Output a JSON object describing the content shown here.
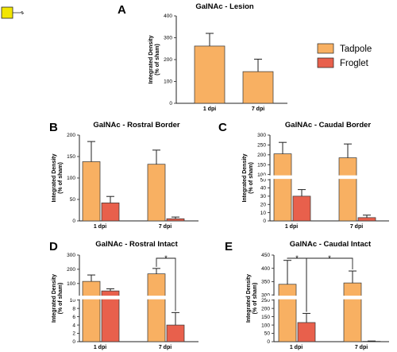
{
  "colors": {
    "tadpole": "#f8b062",
    "froglet": "#e8604c",
    "glyph": "#f2e600",
    "axis": "#222222"
  },
  "symbol": {
    "name": "galnac-square-glyph"
  },
  "legend": {
    "items": [
      {
        "label": "Tadpole",
        "color": "#f8b062"
      },
      {
        "label": "Froglet",
        "color": "#e8604c"
      }
    ]
  },
  "chart_data": [
    {
      "id": "A",
      "panel_label": "A",
      "type": "bar",
      "title": "GalNAc - Lesion",
      "ylabel": "Integrated Density\n(% of sham)",
      "categories": [
        "1 dpi",
        "7 dpi"
      ],
      "series": [
        {
          "name": "Tadpole",
          "values": [
            262,
            145
          ],
          "errors": [
            58,
            57
          ]
        }
      ],
      "yticks": [
        0,
        100,
        200,
        300,
        400
      ],
      "ylim": [
        0,
        400
      ],
      "significance": []
    },
    {
      "id": "B",
      "panel_label": "B",
      "type": "bar",
      "title": "GalNAc - Rostral Border",
      "ylabel": "Integrated Density\n(% of sham)",
      "categories": [
        "1 dpi",
        "7 dpi"
      ],
      "series": [
        {
          "name": "Tadpole",
          "values": [
            138,
            132
          ],
          "errors": [
            47,
            33
          ]
        },
        {
          "name": "Froglet",
          "values": [
            42,
            5
          ],
          "errors": [
            15,
            4
          ]
        }
      ],
      "yticks": [
        0,
        50,
        100,
        150,
        200
      ],
      "ylim": [
        0,
        200
      ],
      "significance": []
    },
    {
      "id": "C",
      "panel_label": "C",
      "type": "bar",
      "title": "GalNAc - Caudal Border",
      "ylabel": "Integrated Density\n(% of sham)",
      "categories": [
        "1 dpi",
        "7 dpi"
      ],
      "series": [
        {
          "name": "Tadpole",
          "values": [
            205,
            185
          ],
          "errors": [
            58,
            70
          ]
        },
        {
          "name": "Froglet",
          "values": [
            30,
            4
          ],
          "errors": [
            8,
            3
          ]
        }
      ],
      "yticks_low": [
        0,
        10,
        20,
        30,
        40,
        50
      ],
      "yticks_high": [
        100,
        150,
        200,
        250,
        300
      ],
      "ylim": [
        0,
        300
      ],
      "axis_break": [
        50,
        100
      ],
      "significance": []
    },
    {
      "id": "D",
      "panel_label": "D",
      "type": "bar",
      "title": "GalNAc - Rostral  Intact",
      "ylabel": "Integrated Density\n(% of sham)",
      "categories": [
        "1 dpi",
        "7 dpi"
      ],
      "series": [
        {
          "name": "Tadpole",
          "values": [
            115,
            168
          ],
          "errors": [
            45,
            38
          ]
        },
        {
          "name": "Froglet",
          "values": [
            48,
            4
          ],
          "errors": [
            15,
            3
          ]
        }
      ],
      "yticks_low": [
        0,
        2,
        4,
        6,
        8,
        10
      ],
      "yticks_high": [
        100,
        200,
        300
      ],
      "ylim": [
        0,
        300
      ],
      "axis_break": [
        10,
        20
      ],
      "significance": [
        {
          "label": "*",
          "from": "7 dpi Tadpole",
          "to": "7 dpi Froglet"
        }
      ]
    },
    {
      "id": "E",
      "panel_label": "E",
      "type": "bar",
      "title": "GalNAc - Caudal Intact",
      "ylabel": "Integrated Density\n(% of sham)",
      "categories": [
        "1 dpi",
        "7 dpi"
      ],
      "series": [
        {
          "name": "Tadpole",
          "values": [
            340,
            345
          ],
          "errors": [
            90,
            45
          ]
        },
        {
          "name": "Froglet",
          "values": [
            115,
            2
          ],
          "errors": [
            55,
            2
          ]
        }
      ],
      "yticks_low": [
        0,
        50,
        100,
        150,
        200,
        250
      ],
      "yticks_high": [
        300,
        350,
        400,
        450
      ],
      "ylim": [
        0,
        450
      ],
      "axis_break": [
        250,
        300
      ],
      "significance": [
        {
          "label": "*",
          "from": "1 dpi Tadpole",
          "to": "1 dpi Froglet"
        },
        {
          "label": "*",
          "from": "1 dpi Froglet",
          "to": "7 dpi Tadpole"
        }
      ]
    }
  ]
}
